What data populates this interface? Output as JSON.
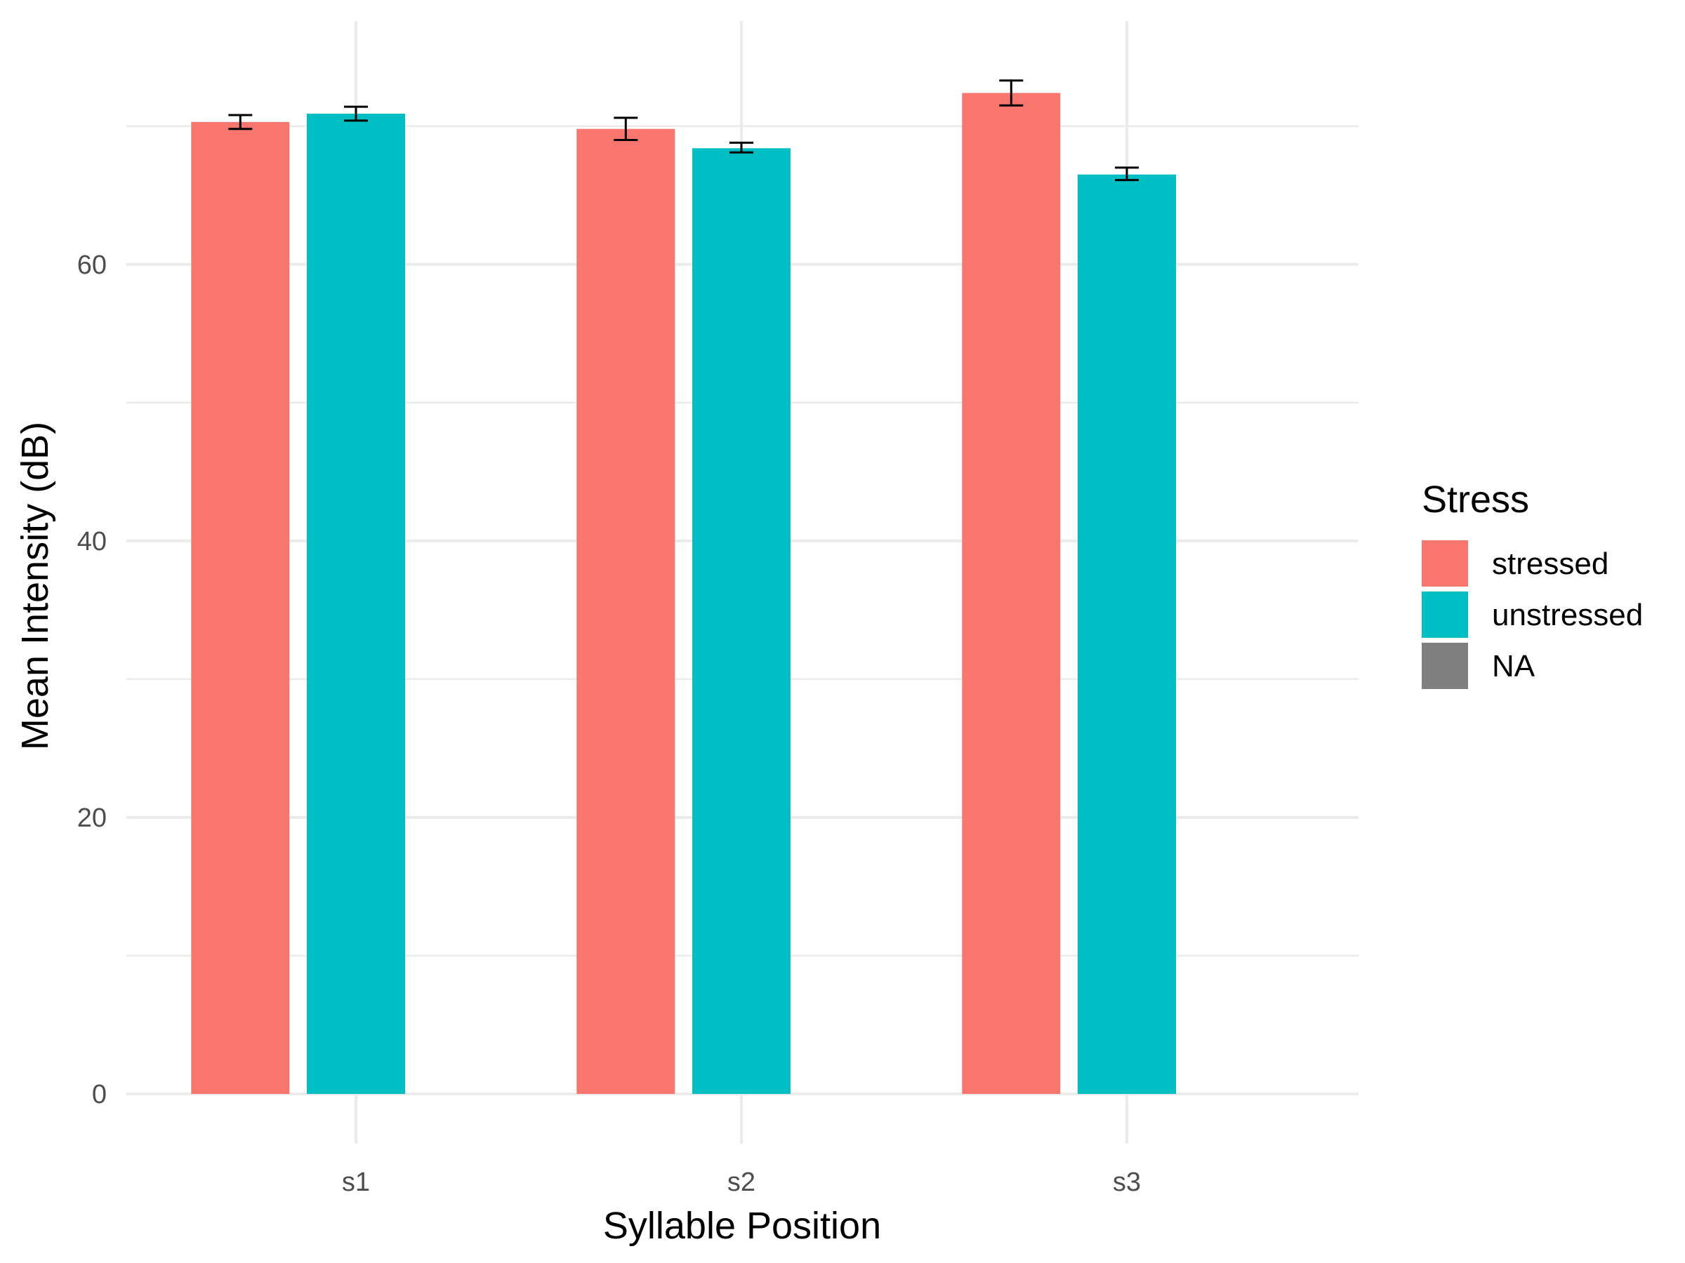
{
  "chart_data": {
    "type": "bar",
    "title": "",
    "xlabel": "Syllable Position",
    "ylabel": "Mean Intensity (dB)",
    "categories": [
      "s1",
      "s2",
      "s3"
    ],
    "ylim": [
      -3.6,
      77.6
    ],
    "yticks": [
      0,
      20,
      40,
      60
    ],
    "grid": true,
    "legend": {
      "title": "Stress",
      "placement": "right",
      "entries": [
        {
          "name": "stressed",
          "color": "#F8766D"
        },
        {
          "name": "unstressed",
          "color": "#00BFC4"
        },
        {
          "name": "NA",
          "color": "#7F7F7F"
        }
      ]
    },
    "series": [
      {
        "name": "stressed",
        "color": "#F8766D",
        "values": [
          70.3,
          69.8,
          72.4
        ],
        "error_low": [
          69.8,
          69.0,
          71.5
        ],
        "error_high": [
          70.8,
          70.6,
          73.3
        ]
      },
      {
        "name": "unstressed",
        "color": "#00BFC4",
        "values": [
          70.9,
          68.4,
          66.5
        ],
        "error_low": [
          70.4,
          68.1,
          66.1
        ],
        "error_high": [
          71.4,
          68.8,
          67.0
        ]
      }
    ]
  }
}
